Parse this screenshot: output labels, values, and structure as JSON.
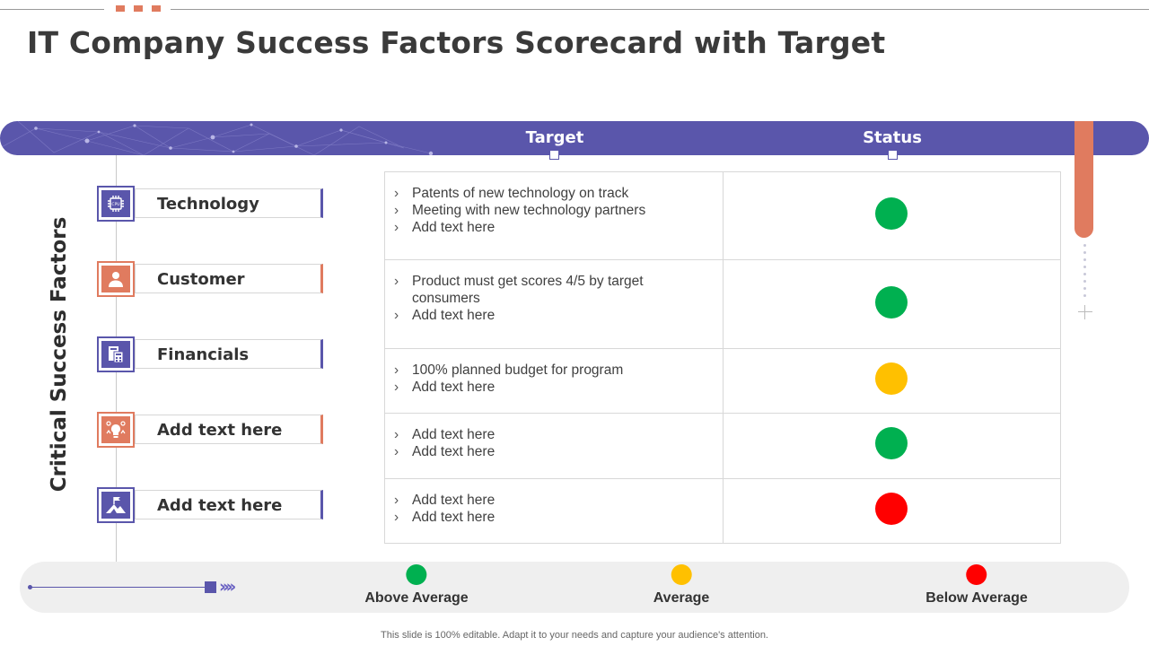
{
  "title": "IT Company Success Factors Scorecard with Target",
  "side_label": "Critical Success Factors",
  "columns": {
    "target": "Target",
    "status": "Status"
  },
  "colors": {
    "purple": "#5a56ab",
    "orange": "#e07b5f",
    "green": "#00b050",
    "yellow": "#ffc000",
    "red": "#ff0000"
  },
  "rows": [
    {
      "factor": "Technology",
      "icon": "chip-icon",
      "icon_color": "#5a56ab",
      "targets": [
        "Patents of new technology  on track",
        "Meeting with new technology partners",
        "Add text here"
      ],
      "status": "green"
    },
    {
      "factor": "Customer",
      "icon": "person-icon",
      "icon_color": "#e07b5f",
      "targets": [
        "Product must  get scores 4/5 by target consumers",
        "Add text here"
      ],
      "status": "green"
    },
    {
      "factor": "Financials",
      "icon": "calculator-document-icon",
      "icon_color": "#5a56ab",
      "targets": [
        "100% planned budget for program",
        "Add text here"
      ],
      "status": "yellow"
    },
    {
      "factor": "Add text here",
      "icon": "idea-gears-icon",
      "icon_color": "#e07b5f",
      "targets": [
        "Add text here",
        "Add text here"
      ],
      "status": "green"
    },
    {
      "factor": "Add text here",
      "icon": "mountain-flag-icon",
      "icon_color": "#5a56ab",
      "targets": [
        "Add text here",
        "Add text here"
      ],
      "status": "red"
    }
  ],
  "legend": [
    {
      "label": "Above Average",
      "color": "#00b050"
    },
    {
      "label": "Average",
      "color": "#ffc000"
    },
    {
      "label": "Below Average",
      "color": "#ff0000"
    }
  ],
  "footer": "This slide is 100% editable. Adapt it to your needs and capture your audience's attention."
}
